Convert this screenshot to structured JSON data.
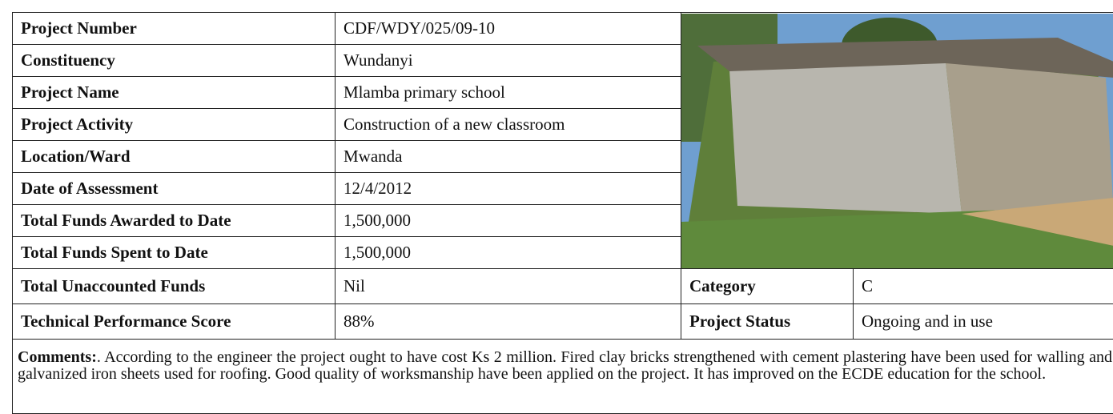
{
  "table": {
    "rows": [
      [
        "Project Number",
        "CDF/WDY/025/09-10"
      ],
      [
        "Constituency",
        "Wundanyi"
      ],
      [
        "Project Name",
        "Mlamba primary school"
      ],
      [
        "Project Activity",
        "Construction of a new classroom"
      ],
      [
        "Location/Ward",
        "Mwanda"
      ],
      [
        "Date of Assessment",
        "12/4/2012"
      ],
      [
        "Total Funds Awarded to Date",
        "1,500,000"
      ],
      [
        "Total Funds Spent to Date",
        "1,500,000"
      ],
      [
        "Total Unaccounted Funds",
        "Nil",
        "Category",
        "C"
      ],
      [
        "Technical Performance Score",
        "88%",
        "Project Status",
        "Ongoing and in use"
      ]
    ],
    "comments": {
      "label": "Comments:",
      "text": ". According to the engineer the project ought to have cost  Ks 2 million. Fired clay bricks strengthened with cement plastering have been used for walling and galvanized iron sheets  used for roofing. Good quality of worksmanship have been applied on the project. It  has improved on the ECDE education for the school."
    }
  }
}
